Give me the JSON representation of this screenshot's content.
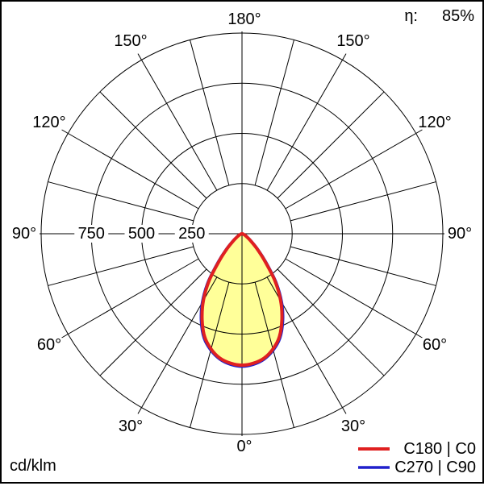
{
  "header": {
    "eta_label": "η:",
    "eta_value": "85%"
  },
  "footer": {
    "unit_label": "cd/klm"
  },
  "legend": [
    {
      "label": "C180 | C0",
      "color": "#e02020"
    },
    {
      "label": "C270 | C90",
      "color": "#2020cc"
    }
  ],
  "chart_data": {
    "type": "polar",
    "subtype": "luminous-intensity-distribution",
    "title": "",
    "unit": "cd/klm",
    "efficiency_percent": 85,
    "grid": true,
    "legend_position": "bottom-right",
    "angle_labels": [
      "0°",
      "30°",
      "60°",
      "90°",
      "120°",
      "150°",
      "180°"
    ],
    "angle_label_step_deg": 30,
    "grid_spoke_step_deg": 15,
    "radial_tick_labels": [
      "250",
      "500",
      "750"
    ],
    "radial_ticks": [
      250,
      500,
      750
    ],
    "radial_max": 1000,
    "fill_color": "#ffff99",
    "gamma_deg": [
      0,
      5,
      10,
      15,
      20,
      25,
      30,
      35,
      40,
      45,
      50,
      55,
      60,
      65,
      70,
      75,
      80,
      85,
      90
    ],
    "series": [
      {
        "name": "C180 | C0",
        "color": "#e02020",
        "values": [
          655,
          648,
          630,
          595,
          545,
          470,
          385,
          285,
          175,
          105,
          60,
          35,
          22,
          14,
          9,
          5,
          3,
          1,
          0
        ]
      },
      {
        "name": "C270 | C90",
        "color": "#2020cc",
        "values": [
          661,
          654,
          635,
          601,
          553,
          481,
          396,
          296,
          186,
          113,
          66,
          38,
          24,
          15,
          10,
          6,
          3,
          1,
          0
        ]
      }
    ]
  }
}
